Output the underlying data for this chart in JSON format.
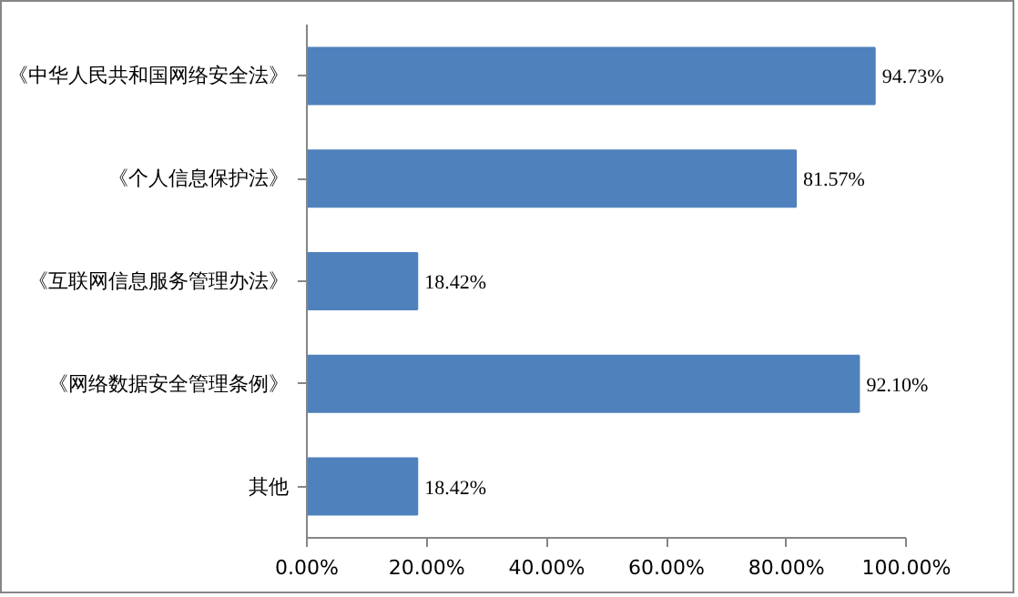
{
  "chart_data": {
    "type": "bar",
    "orientation": "horizontal",
    "categories": [
      "《中华人民共和国网络安全法》",
      "《个人信息保护法》",
      "《互联网信息服务管理办法》",
      "《网络数据安全管理条例》",
      "其他"
    ],
    "values": [
      94.73,
      81.57,
      18.42,
      92.1,
      18.42
    ],
    "value_labels": [
      "94.73%",
      "81.57%",
      "18.42%",
      "92.10%",
      "18.42%"
    ],
    "color": "#4f81bd",
    "xlim": [
      0,
      100
    ],
    "xticks": [
      {
        "value": 0,
        "label": "0.00%"
      },
      {
        "value": 20,
        "label": "20.00%"
      },
      {
        "value": 40,
        "label": "40.00%"
      },
      {
        "value": 60,
        "label": "60.00%"
      },
      {
        "value": 80,
        "label": "80.00%"
      },
      {
        "value": 100,
        "label": "100.00%"
      }
    ],
    "grid": false
  }
}
